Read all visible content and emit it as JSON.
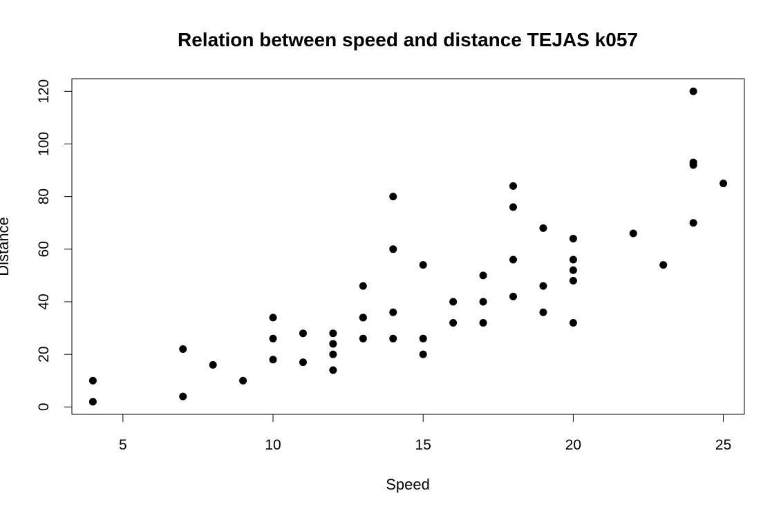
{
  "chart_data": {
    "type": "scatter",
    "title": "Relation between speed and distance TEJAS k057",
    "xlabel": "Speed",
    "ylabel": "Distance",
    "xlim": [
      3.3,
      25.7
    ],
    "ylim": [
      -2.8,
      124.8
    ],
    "xticks": [
      5,
      10,
      15,
      20,
      25
    ],
    "yticks": [
      0,
      20,
      40,
      60,
      80,
      100,
      120
    ],
    "grid": false,
    "legend": "none",
    "marker_color": "#000000",
    "points": [
      {
        "x": 4,
        "y": 2
      },
      {
        "x": 4,
        "y": 10
      },
      {
        "x": 7,
        "y": 4
      },
      {
        "x": 7,
        "y": 22
      },
      {
        "x": 8,
        "y": 16
      },
      {
        "x": 9,
        "y": 10
      },
      {
        "x": 10,
        "y": 18
      },
      {
        "x": 10,
        "y": 26
      },
      {
        "x": 10,
        "y": 34
      },
      {
        "x": 11,
        "y": 17
      },
      {
        "x": 11,
        "y": 28
      },
      {
        "x": 12,
        "y": 14
      },
      {
        "x": 12,
        "y": 20
      },
      {
        "x": 12,
        "y": 24
      },
      {
        "x": 12,
        "y": 28
      },
      {
        "x": 13,
        "y": 26
      },
      {
        "x": 13,
        "y": 34
      },
      {
        "x": 13,
        "y": 34
      },
      {
        "x": 13,
        "y": 46
      },
      {
        "x": 14,
        "y": 26
      },
      {
        "x": 14,
        "y": 36
      },
      {
        "x": 14,
        "y": 60
      },
      {
        "x": 14,
        "y": 80
      },
      {
        "x": 15,
        "y": 20
      },
      {
        "x": 15,
        "y": 26
      },
      {
        "x": 15,
        "y": 54
      },
      {
        "x": 16,
        "y": 32
      },
      {
        "x": 16,
        "y": 40
      },
      {
        "x": 17,
        "y": 32
      },
      {
        "x": 17,
        "y": 40
      },
      {
        "x": 17,
        "y": 50
      },
      {
        "x": 18,
        "y": 42
      },
      {
        "x": 18,
        "y": 56
      },
      {
        "x": 18,
        "y": 76
      },
      {
        "x": 18,
        "y": 84
      },
      {
        "x": 19,
        "y": 36
      },
      {
        "x": 19,
        "y": 46
      },
      {
        "x": 19,
        "y": 68
      },
      {
        "x": 20,
        "y": 32
      },
      {
        "x": 20,
        "y": 48
      },
      {
        "x": 20,
        "y": 52
      },
      {
        "x": 20,
        "y": 56
      },
      {
        "x": 20,
        "y": 64
      },
      {
        "x": 22,
        "y": 66
      },
      {
        "x": 23,
        "y": 54
      },
      {
        "x": 24,
        "y": 70
      },
      {
        "x": 24,
        "y": 92
      },
      {
        "x": 24,
        "y": 93
      },
      {
        "x": 24,
        "y": 120
      },
      {
        "x": 25,
        "y": 85
      }
    ]
  }
}
